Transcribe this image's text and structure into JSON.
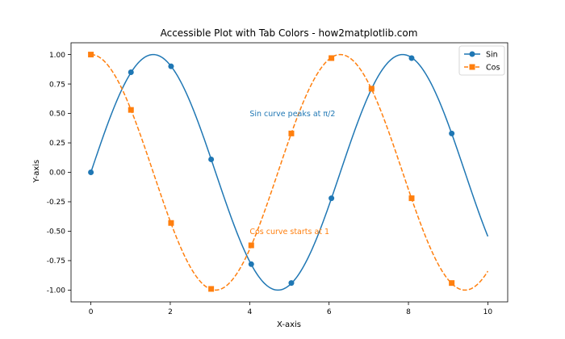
{
  "chart_data": {
    "type": "line",
    "title": "Accessible Plot with Tab Colors - how2matplotlib.com",
    "xlabel": "X-axis",
    "ylabel": "Y-axis",
    "xlim": [
      -0.5,
      10.5
    ],
    "ylim": [
      -1.1,
      1.1
    ],
    "xticks": [
      0,
      2,
      4,
      6,
      8,
      10
    ],
    "xtick_labels": [
      "0",
      "2",
      "4",
      "6",
      "8",
      "10"
    ],
    "yticks": [
      -1.0,
      -0.75,
      -0.5,
      -0.25,
      0.0,
      0.25,
      0.5,
      0.75,
      1.0
    ],
    "ytick_labels": [
      "-1.00",
      "-0.75",
      "-0.50",
      "-0.25",
      "0.00",
      "0.25",
      "0.50",
      "0.75",
      "1.00"
    ],
    "grid": false,
    "legend_position": "top-right",
    "series": [
      {
        "name": "Sin",
        "function": "sin",
        "color": "#1f77b4",
        "linestyle": "solid",
        "marker": "circle",
        "x_range": [
          0,
          10
        ],
        "marker_x": [
          0,
          1.01,
          2.02,
          3.03,
          4.04,
          5.05,
          6.06,
          7.07,
          8.08,
          9.09
        ],
        "marker_y": [
          0.0,
          0.85,
          0.9,
          0.11,
          -0.78,
          -0.94,
          -0.22,
          0.71,
          0.97,
          0.33
        ]
      },
      {
        "name": "Cos",
        "function": "cos",
        "color": "#ff7f0e",
        "linestyle": "dashed",
        "marker": "square",
        "x_range": [
          0,
          10
        ],
        "marker_x": [
          0,
          1.01,
          2.02,
          3.03,
          4.04,
          5.05,
          6.06,
          7.07,
          8.08,
          9.09
        ],
        "marker_y": [
          1.0,
          0.53,
          -0.43,
          -0.99,
          -0.62,
          0.33,
          0.97,
          0.71,
          -0.22,
          -0.94
        ]
      }
    ],
    "annotations": [
      {
        "text": "Sin curve peaks at π/2",
        "x": 4.0,
        "y": 0.5,
        "color": "#1f77b4"
      },
      {
        "text": "Cos curve starts at 1",
        "x": 4.0,
        "y": -0.5,
        "color": "#ff7f0e"
      }
    ]
  }
}
